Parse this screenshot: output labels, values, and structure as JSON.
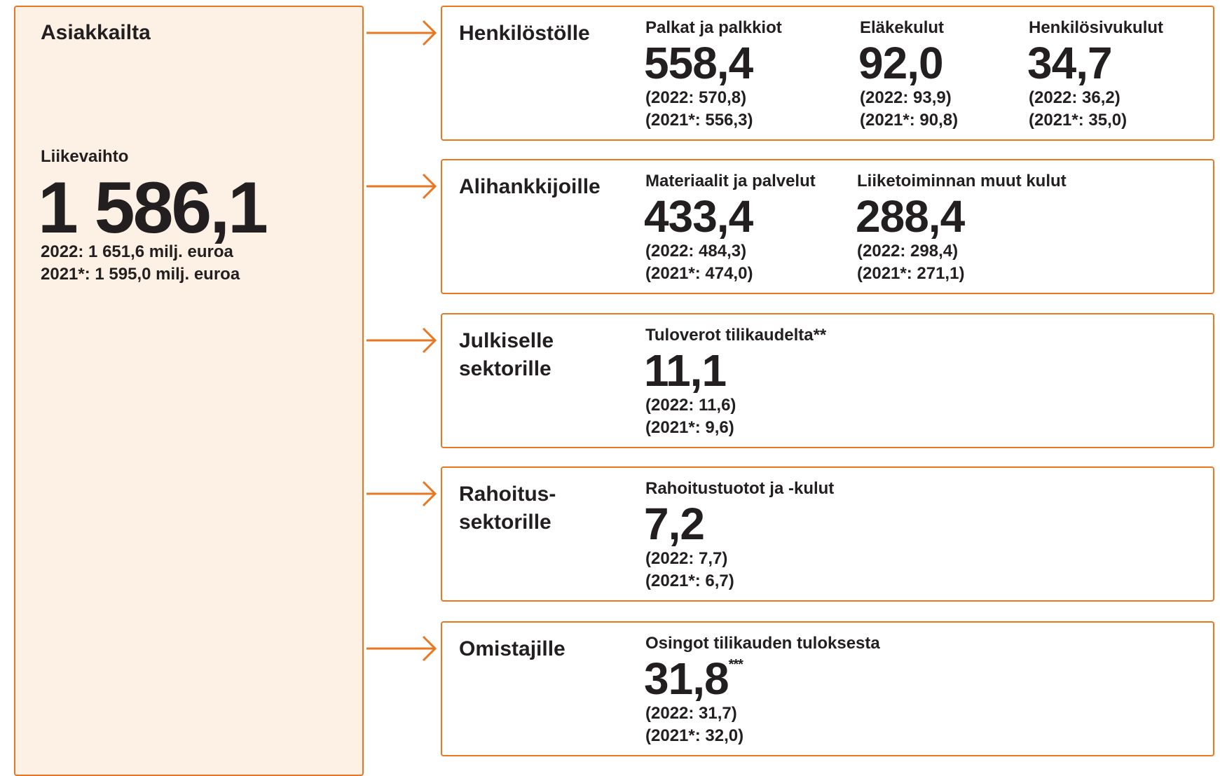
{
  "source": {
    "title": "Asiakkailta",
    "label": "Liikevaihto",
    "value": "1 586,1",
    "prev": [
      "2022: 1 651,6 milj. euroa",
      "2021*: 1 595,0 milj. euroa"
    ]
  },
  "groups": [
    {
      "title_lines": [
        "Henkilöstölle"
      ],
      "items": [
        {
          "label": "Palkat ja palkkiot",
          "value": "558,4",
          "prev": [
            "(2022: 570,8)",
            "(2021*: 556,3)"
          ]
        },
        {
          "label": "Eläkekulut",
          "value": "92,0",
          "prev": [
            "(2022: 93,9)",
            "(2021*: 90,8)"
          ]
        },
        {
          "label": "Henkilösivukulut",
          "value": "34,7",
          "prev": [
            "(2022: 36,2)",
            "(2021*: 35,0)"
          ]
        }
      ]
    },
    {
      "title_lines": [
        "Alihankkijoille"
      ],
      "items": [
        {
          "label": "Materiaalit ja palvelut",
          "value": "433,4",
          "prev": [
            "(2022: 484,3)",
            "(2021*: 474,0)"
          ]
        },
        {
          "label": "Liiketoiminnan muut kulut",
          "value": "288,4",
          "prev": [
            "(2022: 298,4)",
            "(2021*: 271,1)"
          ]
        }
      ]
    },
    {
      "title_lines": [
        "Julkiselle",
        "sektorille"
      ],
      "items": [
        {
          "label": "Tuloverot tilikaudelta**",
          "value": "11,1",
          "prev": [
            "(2022: 11,6)",
            "(2021*: 9,6)"
          ]
        }
      ]
    },
    {
      "title_lines": [
        "Rahoitus-",
        "sektorille"
      ],
      "items": [
        {
          "label": "Rahoitustuotot ja -kulut",
          "value": "7,2",
          "prev": [
            "(2022: 7,7)",
            "(2021*: 6,7)"
          ]
        }
      ]
    },
    {
      "title_lines": [
        "Omistajille"
      ],
      "items": [
        {
          "label": "Osingot tilikauden tuloksesta",
          "value": "31,8",
          "note": "***",
          "prev": [
            "(2022: 31,7)",
            "(2021*: 32,0)"
          ]
        }
      ]
    }
  ]
}
